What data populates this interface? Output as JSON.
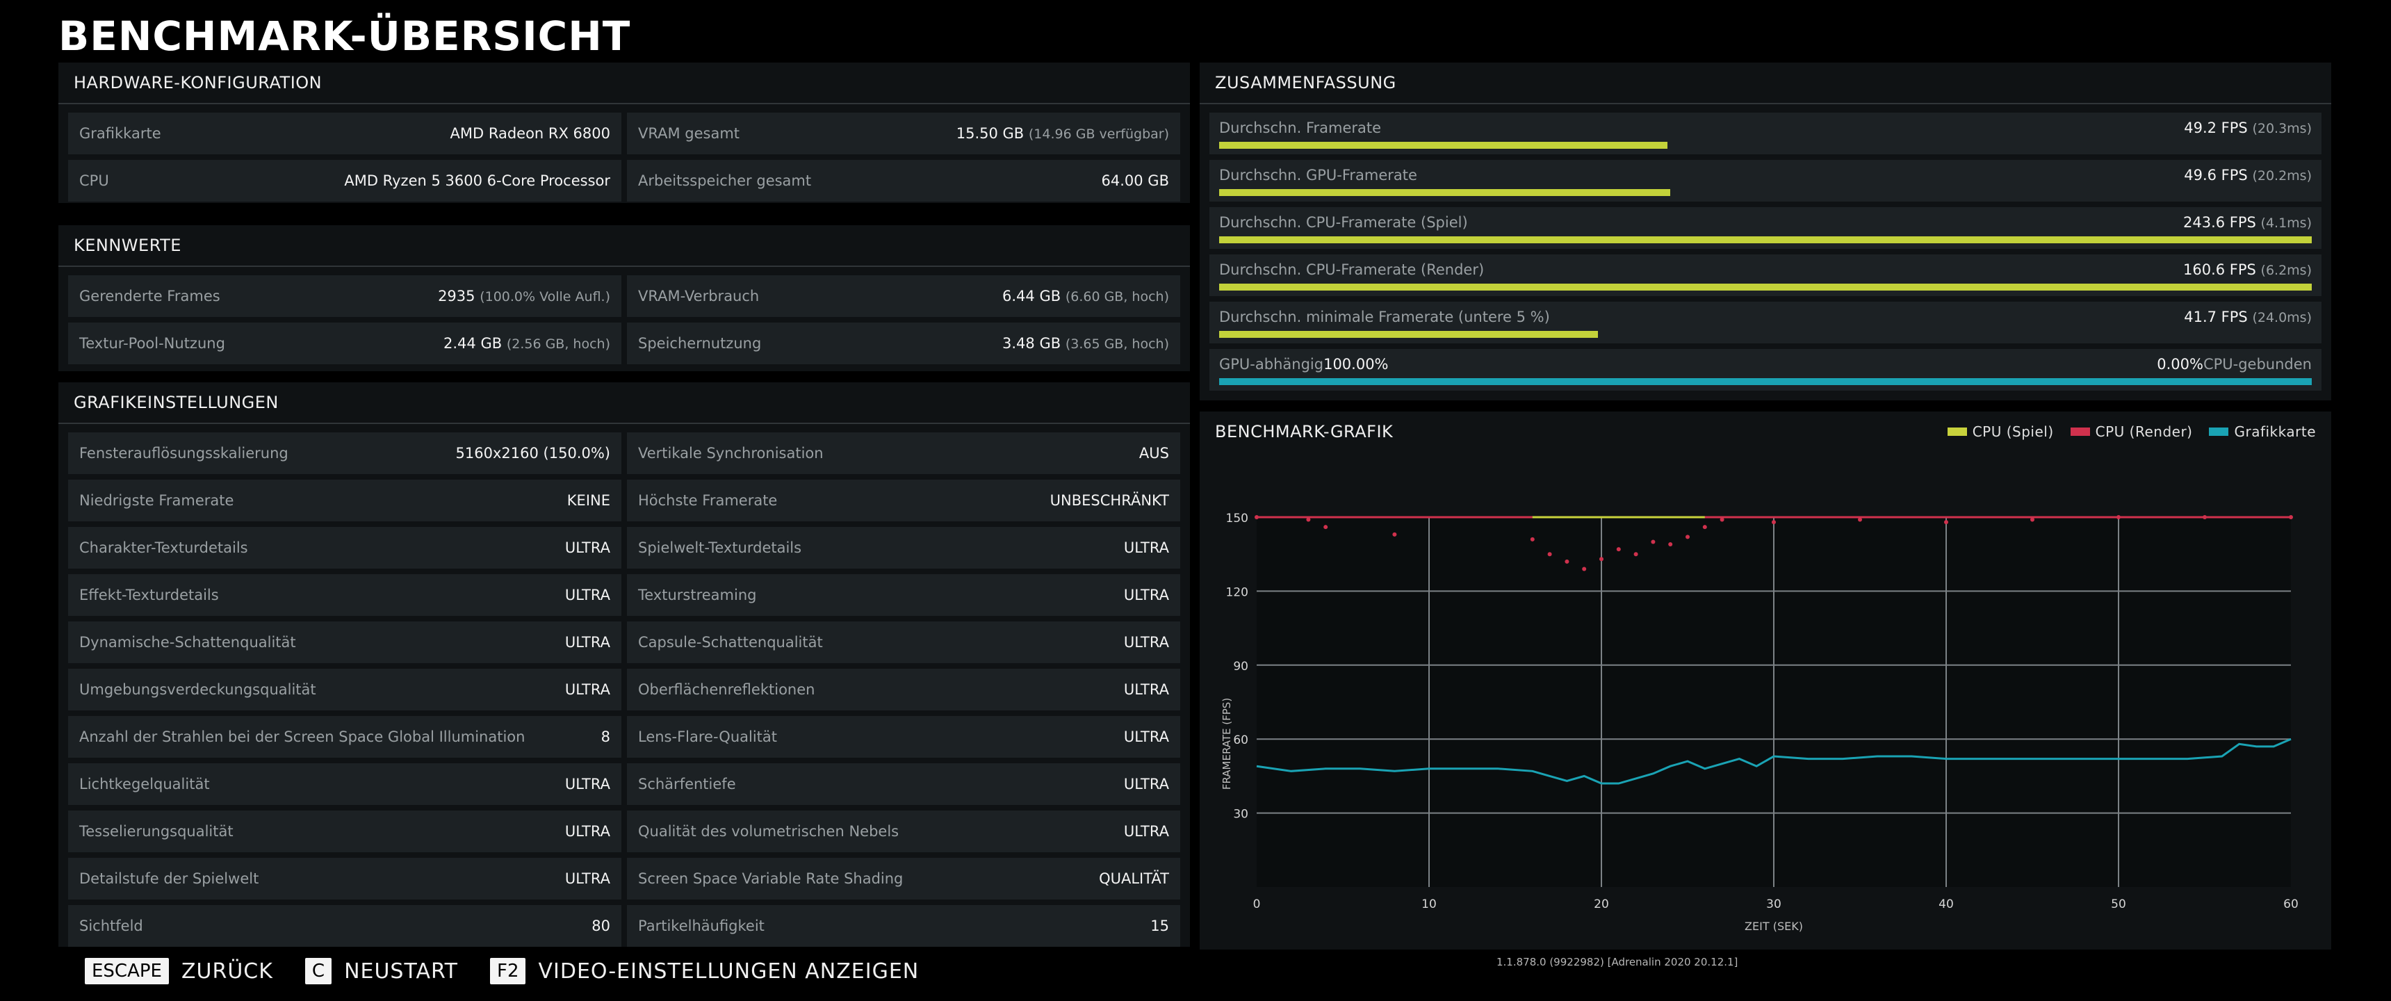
{
  "title": "BENCHMARK-ÜBERSICHT",
  "hardware": {
    "header": "HARDWARE-KONFIGURATION",
    "rows": [
      {
        "label": "Grafikkarte",
        "value": "AMD Radeon RX 6800",
        "sub": ""
      },
      {
        "label": "VRAM gesamt",
        "value": "15.50 GB",
        "sub": "(14.96 GB verfügbar)"
      },
      {
        "label": "CPU",
        "value": "AMD Ryzen 5 3600 6-Core Processor",
        "sub": ""
      },
      {
        "label": "Arbeitsspeicher gesamt",
        "value": "64.00 GB",
        "sub": ""
      }
    ]
  },
  "kennwerte": {
    "header": "KENNWERTE",
    "rows": [
      {
        "label": "Gerenderte Frames",
        "value": "2935",
        "sub": "(100.0% Volle Aufl.)"
      },
      {
        "label": "VRAM-Verbrauch",
        "value": "6.44 GB",
        "sub": "(6.60 GB, hoch)"
      },
      {
        "label": "Textur-Pool-Nutzung",
        "value": "2.44 GB",
        "sub": "(2.56 GB, hoch)"
      },
      {
        "label": "Speichernutzung",
        "value": "3.48 GB",
        "sub": "(3.65 GB, hoch)"
      }
    ]
  },
  "grafik": {
    "header": "GRAFIKEINSTELLUNGEN",
    "rows": [
      {
        "label": "Fensterauflösungsskalierung",
        "value": "5160x2160 (150.0%)"
      },
      {
        "label": "Vertikale Synchronisation",
        "value": "AUS"
      },
      {
        "label": "Niedrigste Framerate",
        "value": "KEINE"
      },
      {
        "label": "Höchste Framerate",
        "value": "UNBESCHRÄNKT"
      },
      {
        "label": "Charakter-Texturdetails",
        "value": "ULTRA"
      },
      {
        "label": "Spielwelt-Texturdetails",
        "value": "ULTRA"
      },
      {
        "label": "Effekt-Texturdetails",
        "value": "ULTRA"
      },
      {
        "label": "Texturstreaming",
        "value": "ULTRA"
      },
      {
        "label": "Dynamische-Schattenqualität",
        "value": "ULTRA"
      },
      {
        "label": "Capsule-Schattenqualität",
        "value": "ULTRA"
      },
      {
        "label": "Umgebungsverdeckungsqualität",
        "value": "ULTRA"
      },
      {
        "label": "Oberflächenreflektionen",
        "value": "ULTRA"
      },
      {
        "label": "Anzahl der Strahlen bei der Screen Space Global Illumination",
        "value": "8"
      },
      {
        "label": "Lens-Flare-Qualität",
        "value": "ULTRA"
      },
      {
        "label": "Lichtkegelqualität",
        "value": "ULTRA"
      },
      {
        "label": "Schärfentiefe",
        "value": "ULTRA"
      },
      {
        "label": "Tesselierungsqualität",
        "value": "ULTRA"
      },
      {
        "label": "Qualität des volumetrischen Nebels",
        "value": "ULTRA"
      },
      {
        "label": "Detailstufe der Spielwelt",
        "value": "ULTRA"
      },
      {
        "label": "Screen Space Variable Rate Shading",
        "value": "QUALITÄT"
      },
      {
        "label": "Sichtfeld",
        "value": "80"
      },
      {
        "label": "Partikelhäufigkeit",
        "value": "15"
      }
    ]
  },
  "summary": {
    "header": "ZUSAMMENFASSUNG",
    "rows": [
      {
        "label": "Durchschn. Framerate",
        "value": "49.2 FPS",
        "sub": "(20.3ms)",
        "fill": 0.41
      },
      {
        "label": "Durchschn. GPU-Framerate",
        "value": "49.6 FPS",
        "sub": "(20.2ms)",
        "fill": 0.413
      },
      {
        "label": "Durchschn. CPU-Framerate (Spiel)",
        "value": "243.6 FPS",
        "sub": "(4.1ms)",
        "fill": 1.0
      },
      {
        "label": "Durchschn. CPU-Framerate (Render)",
        "value": "160.6 FPS",
        "sub": "(6.2ms)",
        "fill": 1.0
      },
      {
        "label": "Durchschn. minimale Framerate (untere 5 %)",
        "value": "41.7 FPS",
        "sub": "(24.0ms)",
        "fill": 0.347
      }
    ],
    "gpu": {
      "left_label": "GPU-abhängig",
      "left_pct": "100.00%",
      "right_pct": "0.00%",
      "right_label": "CPU-gebunden",
      "fill": 1.0
    }
  },
  "chart_header": "BENCHMARK-GRAFIK",
  "chart_data": {
    "type": "scatter",
    "title": "BENCHMARK-GRAFIK",
    "xlabel": "ZEIT (SEK)",
    "ylabel": "FRAMERATE (FPS)",
    "xlim": [
      0,
      60
    ],
    "ylim": [
      0,
      150
    ],
    "xticks": [
      0,
      10,
      20,
      30,
      40,
      50,
      60
    ],
    "yticks": [
      30,
      60,
      90,
      120,
      150
    ],
    "grid": true,
    "legend_position": "top-right",
    "series": [
      {
        "name": "CPU (Spiel)",
        "color": "#c8d23c",
        "values": [
          [
            16,
            150
          ],
          [
            18,
            150
          ],
          [
            20,
            150
          ],
          [
            22,
            150
          ],
          [
            24,
            150
          ],
          [
            26,
            150
          ]
        ]
      },
      {
        "name": "CPU (Render)",
        "color": "#d0314d",
        "values": [
          [
            0,
            150
          ],
          [
            3,
            149
          ],
          [
            4,
            146
          ],
          [
            8,
            143
          ],
          [
            16,
            141
          ],
          [
            17,
            135
          ],
          [
            18,
            132
          ],
          [
            19,
            129
          ],
          [
            20,
            133
          ],
          [
            21,
            137
          ],
          [
            22,
            135
          ],
          [
            23,
            140
          ],
          [
            24,
            139
          ],
          [
            25,
            142
          ],
          [
            26,
            146
          ],
          [
            27,
            149
          ],
          [
            30,
            148
          ],
          [
            35,
            149
          ],
          [
            40,
            148
          ],
          [
            45,
            149
          ],
          [
            50,
            150
          ],
          [
            55,
            150
          ],
          [
            60,
            150
          ]
        ]
      },
      {
        "name": "Grafikkarte",
        "color": "#1aa3b4",
        "values": [
          [
            0,
            49
          ],
          [
            2,
            47
          ],
          [
            4,
            48
          ],
          [
            6,
            48
          ],
          [
            8,
            47
          ],
          [
            10,
            48
          ],
          [
            12,
            48
          ],
          [
            14,
            48
          ],
          [
            16,
            47
          ],
          [
            17,
            45
          ],
          [
            18,
            43
          ],
          [
            19,
            45
          ],
          [
            20,
            42
          ],
          [
            21,
            42
          ],
          [
            22,
            44
          ],
          [
            23,
            46
          ],
          [
            24,
            49
          ],
          [
            25,
            51
          ],
          [
            26,
            48
          ],
          [
            27,
            50
          ],
          [
            28,
            52
          ],
          [
            29,
            49
          ],
          [
            30,
            53
          ],
          [
            32,
            52
          ],
          [
            34,
            52
          ],
          [
            36,
            53
          ],
          [
            38,
            53
          ],
          [
            40,
            52
          ],
          [
            42,
            52
          ],
          [
            44,
            52
          ],
          [
            46,
            52
          ],
          [
            48,
            52
          ],
          [
            50,
            52
          ],
          [
            52,
            52
          ],
          [
            54,
            52
          ],
          [
            56,
            53
          ],
          [
            57,
            58
          ],
          [
            58,
            57
          ],
          [
            59,
            57
          ],
          [
            60,
            60
          ]
        ]
      }
    ],
    "reference_line": {
      "value": 150,
      "color": "#d0314d"
    }
  },
  "footer": {
    "items": [
      {
        "key": "ESCAPE",
        "label": "ZURÜCK"
      },
      {
        "key": "C",
        "label": "NEUSTART"
      },
      {
        "key": "F2",
        "label": "VIDEO-EINSTELLUNGEN ANZEIGEN"
      }
    ],
    "version": "1.1.878.0 (9922982) [Adrenalin 2020 20.12.1]"
  }
}
